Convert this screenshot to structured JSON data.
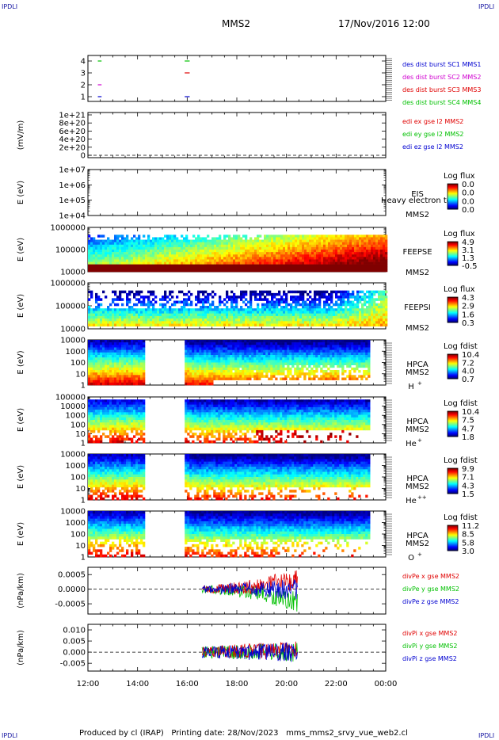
{
  "header": {
    "corner_label": "IPDLI",
    "spacecraft": "MMS2",
    "datetime": "17/Nov/2016 12:00"
  },
  "footer": {
    "produced": "Produced by cl (IRAP)",
    "printing": "Printing date: 28/Nov/2023",
    "file": "mms_mms2_srvy_vue_web2.cl"
  },
  "time_axis": {
    "ticks": [
      "12:00",
      "14:00",
      "16:00",
      "18:00",
      "20:00",
      "22:00",
      "00:00"
    ],
    "range_hours": [
      12,
      24
    ]
  },
  "colors": {
    "red": "#e00000",
    "green": "#00c000",
    "blue": "#0000d0",
    "magenta": "#d000d0",
    "legend_blue": "#1010a0"
  },
  "chart_data": [
    {
      "id": "burst",
      "type": "line",
      "yticks": [
        "1",
        "2",
        "3",
        "4"
      ],
      "ylim": [
        0.5,
        4.5
      ],
      "series": [
        {
          "name": "des dist burst SC1 MMS1",
          "color": "#0000d0",
          "y": 1,
          "segments": [
            [
              12.4,
              12.55
            ],
            [
              15.9,
              16.1
            ]
          ]
        },
        {
          "name": "des dist burst SC2 MMS2",
          "color": "#d000d0",
          "y": 2,
          "segments": [
            [
              12.4,
              12.55
            ]
          ]
        },
        {
          "name": "des dist burst SC3 MMS3",
          "color": "#e00000",
          "y": 3,
          "segments": [
            [
              15.9,
              16.1
            ]
          ]
        },
        {
          "name": "des dist burst SC4 MMS4",
          "color": "#00c000",
          "y": 4,
          "segments": [
            [
              12.4,
              12.55
            ],
            [
              15.9,
              16.1
            ]
          ]
        }
      ]
    },
    {
      "id": "edi",
      "type": "line",
      "ylabel": "(mV/m)",
      "yticks": [
        "0",
        "2e+20",
        "4e+20",
        "6e+20",
        "8e+20",
        "1e+21"
      ],
      "ylim": [
        0,
        1e+21
      ],
      "series": [
        {
          "name": "edi ex gse l2 MMS2",
          "color": "#e00000"
        },
        {
          "name": "edi ey gse l2 MMS2",
          "color": "#00c000"
        },
        {
          "name": "edi ez gse l2 MMS2",
          "color": "#0000d0"
        }
      ],
      "zero_line": true
    },
    {
      "id": "eis",
      "type": "heatmap",
      "ylabel": "E (eV)",
      "yticks": [
        "1e+04",
        "1e+05",
        "1e+06",
        "1e+07"
      ],
      "instrument": "EIS",
      "spacecraft": "MMS2",
      "overlay_text": "Heavy electron to",
      "colorbar": {
        "title": "Log flux",
        "ticks": [
          "0.0",
          "0.0",
          "0.0",
          "0.0"
        ]
      },
      "coverage": []
    },
    {
      "id": "feepse",
      "type": "heatmap",
      "ylabel": "E (eV)",
      "yticks": [
        "10000",
        "100000",
        "1000000"
      ],
      "instrument": "FEEPSE",
      "spacecraft": "MMS2",
      "colorbar": {
        "title": "Log flux",
        "ticks": [
          "4.9",
          "3.1",
          "1.3",
          "-0.5"
        ]
      },
      "coverage": [
        [
          12.0,
          24.0
        ]
      ]
    },
    {
      "id": "feepsi",
      "type": "heatmap",
      "ylabel": "E (eV)",
      "yticks": [
        "10000",
        "100000",
        "1000000"
      ],
      "instrument": "FEEPSI",
      "spacecraft": "MMS2",
      "colorbar": {
        "title": "Log flux",
        "ticks": [
          "4.3",
          "2.9",
          "1.6",
          "0.3"
        ]
      },
      "coverage": [
        [
          12.0,
          24.0
        ]
      ]
    },
    {
      "id": "hpca_h",
      "type": "heatmap",
      "ylabel": "E (eV)",
      "yticks": [
        "1",
        "10",
        "100",
        "1000",
        "10000"
      ],
      "instrument": "HPCA",
      "spacecraft": "MMS2",
      "species": "H",
      "charge": "+",
      "colorbar": {
        "title": "Log fdist",
        "ticks": [
          "10.4",
          "7.2",
          "4.0",
          "0.7"
        ]
      },
      "coverage": [
        [
          12.0,
          14.25
        ],
        [
          15.9,
          23.3
        ]
      ]
    },
    {
      "id": "hpca_he1",
      "type": "heatmap",
      "ylabel": "E (eV)",
      "yticks": [
        "1",
        "10",
        "100",
        "1000",
        "10000",
        "100000"
      ],
      "instrument": "HPCA",
      "spacecraft": "MMS2",
      "species": "He",
      "charge": "+",
      "colorbar": {
        "title": "Log fdist",
        "ticks": [
          "10.4",
          "7.5",
          "4.7",
          "1.8"
        ]
      },
      "coverage": [
        [
          12.0,
          14.25
        ],
        [
          15.9,
          23.3
        ]
      ]
    },
    {
      "id": "hpca_he2",
      "type": "heatmap",
      "ylabel": "E (eV)",
      "yticks": [
        "1",
        "10",
        "100",
        "1000",
        "10000"
      ],
      "instrument": "HPCA",
      "spacecraft": "MMS2",
      "species": "He",
      "charge": "++",
      "colorbar": {
        "title": "Log fdist",
        "ticks": [
          "9.9",
          "7.1",
          "4.3",
          "1.5"
        ]
      },
      "coverage": [
        [
          12.0,
          14.25
        ],
        [
          15.9,
          23.3
        ]
      ]
    },
    {
      "id": "hpca_o",
      "type": "heatmap",
      "ylabel": "E (eV)",
      "yticks": [
        "1",
        "10",
        "100",
        "1000",
        "10000"
      ],
      "instrument": "HPCA",
      "spacecraft": "MMS2",
      "species": "O",
      "charge": "+",
      "colorbar": {
        "title": "Log fdist",
        "ticks": [
          "11.2",
          "8.5",
          "5.8",
          "3.0"
        ]
      },
      "coverage": [
        [
          12.0,
          14.25
        ],
        [
          15.9,
          23.3
        ]
      ]
    },
    {
      "id": "divpe",
      "type": "line",
      "ylabel": "(nPa/km)",
      "yticks": [
        "-0.0005",
        "0.0000",
        "0.0005"
      ],
      "ylim": [
        -0.00085,
        0.00075
      ],
      "series": [
        {
          "name": "divPe x gse MMS2",
          "color": "#e00000"
        },
        {
          "name": "divPe y gse MMS2",
          "color": "#00c000"
        },
        {
          "name": "divPe z gse MMS2",
          "color": "#0000d0"
        }
      ],
      "coverage": [
        [
          16.6,
          20.45
        ]
      ],
      "zero_line": true
    },
    {
      "id": "divpi",
      "type": "line",
      "ylabel": "(nPa/km)",
      "yticks": [
        "-0.005",
        "0.000",
        "0.005",
        "0.010"
      ],
      "ylim": [
        -0.0085,
        0.0125
      ],
      "series": [
        {
          "name": "divPi x gse MMS2",
          "color": "#e00000"
        },
        {
          "name": "divPi y gse MMS2",
          "color": "#00c000"
        },
        {
          "name": "divPi z gse MMS2",
          "color": "#0000d0"
        }
      ],
      "coverage": [
        [
          16.6,
          20.45
        ]
      ],
      "zero_line": true
    }
  ]
}
